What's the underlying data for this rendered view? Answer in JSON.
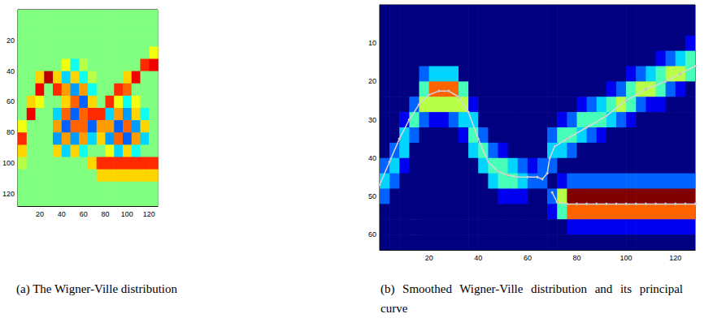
{
  "chart_data": [
    {
      "type": "heatmap",
      "title": "(a) The Wigner-Ville distribution",
      "xlim": [
        0,
        128
      ],
      "ylim": [
        0,
        128
      ],
      "xticks": [
        20,
        40,
        60,
        80,
        100,
        120
      ],
      "yticks": [
        20,
        40,
        60,
        80,
        100,
        120
      ],
      "zlim": [
        -9,
        9
      ],
      "x": [
        4,
        12,
        20,
        28,
        36,
        44,
        52,
        60,
        68,
        76,
        84,
        92,
        100,
        108,
        116,
        124
      ],
      "y": [
        4,
        12,
        20,
        28,
        36,
        44,
        52,
        60,
        68,
        76,
        84,
        92,
        100,
        108,
        116,
        124
      ],
      "z": [
        [
          0,
          0,
          0,
          0,
          0,
          0,
          0,
          0,
          0,
          0,
          0,
          0,
          0,
          0,
          0,
          0
        ],
        [
          0,
          0,
          0,
          0,
          0,
          0,
          0,
          0,
          0,
          0,
          0,
          0,
          0,
          0,
          0,
          0
        ],
        [
          0,
          0,
          0,
          0,
          0,
          0,
          0,
          0,
          0,
          0,
          0,
          0,
          0,
          0,
          0,
          0
        ],
        [
          0,
          0,
          0,
          0,
          0,
          0,
          0,
          0,
          0,
          0,
          0,
          0,
          0,
          0,
          0,
          2
        ],
        [
          0,
          0,
          0,
          0,
          0,
          2,
          -2,
          1,
          0,
          0,
          0,
          0,
          0,
          0,
          6,
          7
        ],
        [
          0,
          0,
          3,
          8,
          3,
          -3,
          3,
          -2,
          1,
          0,
          0,
          0,
          3,
          7,
          0,
          0
        ],
        [
          0,
          0,
          7,
          0,
          6,
          4,
          -4,
          4,
          -2,
          0,
          0,
          6,
          5,
          0,
          0,
          0
        ],
        [
          0,
          3,
          2,
          0,
          0,
          3,
          5,
          -5,
          3,
          0,
          6,
          2,
          -2,
          2,
          0,
          0
        ],
        [
          0,
          7,
          0,
          0,
          -3,
          5,
          -5,
          5,
          6,
          6,
          -3,
          4,
          -4,
          3,
          -2,
          0
        ],
        [
          2,
          0,
          0,
          0,
          4,
          -5,
          5,
          5,
          -5,
          4,
          4,
          -5,
          5,
          -4,
          3,
          0
        ],
        [
          6,
          0,
          0,
          0,
          -4,
          4,
          -4,
          4,
          -3,
          3,
          -4,
          5,
          -5,
          4,
          -3,
          0
        ],
        [
          3,
          0,
          0,
          0,
          3,
          -3,
          3,
          -2,
          0,
          0,
          2,
          -3,
          3,
          -2,
          0,
          0
        ],
        [
          1,
          0,
          0,
          0,
          0,
          0,
          0,
          0,
          3,
          6,
          6,
          6,
          6,
          6,
          6,
          6
        ],
        [
          0,
          0,
          0,
          0,
          0,
          0,
          0,
          0,
          0,
          3,
          3,
          3,
          3,
          3,
          3,
          3
        ],
        [
          0,
          0,
          0,
          0,
          0,
          0,
          0,
          0,
          0,
          0,
          0,
          0,
          0,
          0,
          0,
          0
        ],
        [
          0,
          0,
          0,
          0,
          0,
          0,
          0,
          0,
          0,
          0,
          0,
          0,
          0,
          0,
          0,
          0
        ]
      ]
    },
    {
      "type": "heatmap",
      "title": "(b) Smoothed Wigner-Ville distribution and its principal curve",
      "xlim": [
        0,
        128
      ],
      "ylim": [
        0,
        64
      ],
      "xticks": [
        20,
        40,
        60,
        80,
        100,
        120
      ],
      "yticks": [
        10,
        20,
        30,
        40,
        50,
        60
      ],
      "zlim": [
        0,
        9
      ],
      "x": [
        2,
        6,
        10,
        14,
        18,
        22,
        26,
        30,
        34,
        38,
        42,
        46,
        50,
        54,
        58,
        62,
        66,
        70,
        74,
        78,
        82,
        86,
        90,
        94,
        98,
        102,
        106,
        110,
        114,
        118,
        122,
        126
      ],
      "y": [
        2,
        6,
        10,
        14,
        18,
        22,
        26,
        30,
        34,
        38,
        42,
        46,
        50,
        54,
        58,
        62
      ],
      "z": [
        [
          0,
          0,
          0,
          0,
          0,
          0,
          0,
          0,
          0,
          0,
          0,
          0,
          0,
          0,
          0,
          0,
          0,
          0,
          0,
          0,
          0,
          0,
          0,
          0,
          0,
          0,
          0,
          0,
          0,
          0,
          0,
          0
        ],
        [
          0,
          0,
          0,
          0,
          0,
          0,
          0,
          0,
          0,
          0,
          0,
          0,
          0,
          0,
          0,
          0,
          0,
          0,
          0,
          0,
          0,
          0,
          0,
          0,
          0,
          0,
          0,
          0,
          0,
          0,
          0,
          0
        ],
        [
          0,
          0,
          0,
          0,
          0,
          0,
          0,
          0,
          0,
          0,
          0,
          0,
          0,
          0,
          0,
          0,
          0,
          0,
          0,
          0,
          0,
          0,
          0,
          0,
          0,
          0,
          0,
          0,
          0,
          0,
          0,
          1
        ],
        [
          0,
          0,
          0,
          0,
          0,
          0,
          0,
          0,
          0,
          0,
          0,
          0,
          0,
          0,
          0,
          0,
          0,
          0,
          0,
          0,
          0,
          0,
          0,
          0,
          0,
          0,
          0,
          0,
          1,
          2,
          3,
          4
        ],
        [
          0,
          0,
          0,
          0,
          2,
          3,
          3,
          3,
          0,
          0,
          0,
          0,
          0,
          0,
          0,
          0,
          0,
          0,
          0,
          0,
          0,
          0,
          0,
          0,
          0,
          1,
          2,
          3,
          4,
          5,
          5,
          4
        ],
        [
          0,
          0,
          0,
          0,
          4,
          7,
          7,
          7,
          4,
          0,
          0,
          0,
          0,
          0,
          0,
          0,
          0,
          0,
          0,
          0,
          0,
          0,
          0,
          1,
          2,
          4,
          5,
          5,
          4,
          2,
          1,
          0
        ],
        [
          0,
          0,
          0,
          2,
          5,
          5,
          5,
          5,
          5,
          1,
          0,
          0,
          0,
          0,
          0,
          0,
          0,
          0,
          0,
          0,
          1,
          2,
          3,
          4,
          5,
          4,
          2,
          1,
          1,
          0,
          0,
          0
        ],
        [
          0,
          0,
          1,
          4,
          2,
          1,
          1,
          2,
          3,
          3,
          0,
          0,
          0,
          0,
          0,
          0,
          0,
          0,
          1,
          2,
          4,
          4,
          4,
          3,
          2,
          1,
          0,
          0,
          0,
          0,
          0,
          0
        ],
        [
          0,
          0,
          3,
          2,
          0,
          0,
          0,
          0,
          1,
          4,
          2,
          0,
          0,
          0,
          0,
          0,
          0,
          2,
          4,
          4,
          3,
          2,
          1,
          0,
          0,
          0,
          0,
          0,
          0,
          0,
          0,
          0
        ],
        [
          0,
          2,
          3,
          0,
          0,
          0,
          0,
          0,
          0,
          3,
          4,
          2,
          1,
          0,
          0,
          0,
          0,
          3,
          3,
          2,
          0,
          0,
          0,
          0,
          0,
          0,
          0,
          0,
          0,
          0,
          0,
          0
        ],
        [
          2,
          3,
          1,
          0,
          0,
          0,
          0,
          0,
          0,
          0,
          3,
          4,
          4,
          3,
          2,
          1,
          2,
          2,
          0,
          0,
          0,
          0,
          0,
          0,
          0,
          0,
          0,
          0,
          0,
          0,
          0,
          0
        ],
        [
          3,
          2,
          0,
          0,
          0,
          0,
          0,
          0,
          0,
          0,
          0,
          3,
          4,
          4,
          3,
          2,
          2,
          0,
          1,
          2,
          2,
          2,
          2,
          2,
          2,
          2,
          2,
          2,
          2,
          2,
          2,
          2
        ],
        [
          2,
          0,
          0,
          0,
          0,
          0,
          0,
          0,
          0,
          0,
          0,
          0,
          1,
          1,
          1,
          0,
          0,
          2,
          5,
          9,
          9,
          9,
          9,
          9,
          9,
          9,
          9,
          9,
          9,
          9,
          9,
          9
        ],
        [
          0,
          0,
          0,
          0,
          0,
          0,
          0,
          0,
          0,
          0,
          0,
          0,
          0,
          0,
          0,
          0,
          0,
          1,
          4,
          7,
          7,
          7,
          7,
          7,
          7,
          7,
          7,
          7,
          7,
          7,
          7,
          7
        ],
        [
          0,
          0,
          0,
          0,
          0,
          0,
          0,
          0,
          0,
          0,
          0,
          0,
          0,
          0,
          0,
          0,
          0,
          0,
          0,
          1,
          1,
          1,
          1,
          1,
          1,
          1,
          1,
          1,
          1,
          1,
          1,
          1
        ],
        [
          0,
          0,
          0,
          0,
          0,
          0,
          0,
          0,
          0,
          0,
          0,
          0,
          0,
          0,
          0,
          0,
          0,
          0,
          0,
          0,
          0,
          0,
          0,
          0,
          0,
          0,
          0,
          0,
          0,
          0,
          0,
          0
        ]
      ],
      "principal_curve": {
        "color": "#d8d8d8",
        "marker": "o",
        "x": [
          0,
          4,
          8,
          12,
          16,
          20,
          24,
          28,
          32,
          36,
          40,
          44,
          48,
          52,
          56,
          60,
          64,
          66,
          68,
          69,
          71,
          76,
          84,
          92,
          100,
          108,
          116,
          122,
          128,
          null,
          70,
          72,
          76,
          80,
          84,
          88,
          92,
          96,
          100,
          104,
          108,
          112,
          116,
          120,
          124,
          128
        ],
        "y": [
          47,
          41,
          35,
          30,
          26,
          23.5,
          22.5,
          22.5,
          24,
          28,
          35,
          41,
          43.5,
          44.5,
          45,
          45,
          45,
          45.5,
          44,
          40,
          37,
          35,
          32,
          29,
          25,
          22,
          20,
          18,
          16,
          null,
          49,
          51.5,
          52,
          52,
          52,
          52,
          52,
          52,
          52,
          52,
          52,
          52,
          52,
          52,
          52,
          52
        ]
      }
    }
  ]
}
